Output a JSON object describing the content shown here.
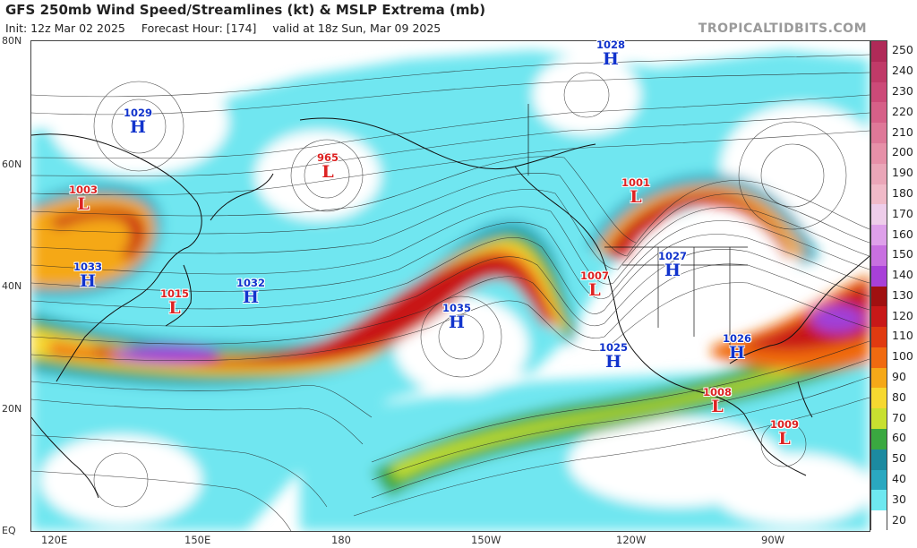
{
  "header": {
    "title": "GFS 250mb Wind Speed/Streamlines (kt) & MSLP Extrema (mb)",
    "init": "Init: 12z Mar 02 2025",
    "forecast_hour": "Forecast Hour: [174]",
    "valid": "valid at 18z Sun, Mar 09 2025",
    "watermark": "TROPICALTIDBITS.COM"
  },
  "axes": {
    "lat_labels": [
      "80N",
      "60N",
      "40N",
      "20N",
      "EQ"
    ],
    "lon_labels": [
      "120E",
      "150E",
      "180",
      "150W",
      "120W",
      "90W"
    ]
  },
  "colorbar": {
    "labels": [
      "250",
      "240",
      "230",
      "220",
      "210",
      "200",
      "190",
      "180",
      "170",
      "160",
      "150",
      "140",
      "130",
      "120",
      "110",
      "100",
      "90",
      "80",
      "70",
      "60",
      "50",
      "40",
      "30",
      "20"
    ],
    "colors": [
      "#b02a58",
      "#c03a68",
      "#cc4a78",
      "#d66088",
      "#de7898",
      "#e690a8",
      "#eaa6b8",
      "#f0bac8",
      "#eecdea",
      "#dea0ea",
      "#c870e0",
      "#a840d8",
      "#a01010",
      "#c81818",
      "#e03a10",
      "#f06a10",
      "#f5a818",
      "#f6d830",
      "#c8e030",
      "#3aa840",
      "#1c8aa0",
      "#2aa8c0",
      "#6ee8f0",
      "#ffffff"
    ]
  },
  "pressure_centers": [
    {
      "type": "H",
      "value": "1028"
    },
    {
      "type": "H",
      "value": "1029"
    },
    {
      "type": "L",
      "value": "965"
    },
    {
      "type": "L",
      "value": "1003"
    },
    {
      "type": "L",
      "value": "1001"
    },
    {
      "type": "H",
      "value": "1033"
    },
    {
      "type": "L",
      "value": "1015"
    },
    {
      "type": "H",
      "value": "1032"
    },
    {
      "type": "H",
      "value": "1035"
    },
    {
      "type": "L",
      "value": "1007"
    },
    {
      "type": "H",
      "value": "1027"
    },
    {
      "type": "H",
      "value": "1025"
    },
    {
      "type": "H",
      "value": "1026"
    },
    {
      "type": "L",
      "value": "1008"
    },
    {
      "type": "L",
      "value": "1009"
    }
  ]
}
